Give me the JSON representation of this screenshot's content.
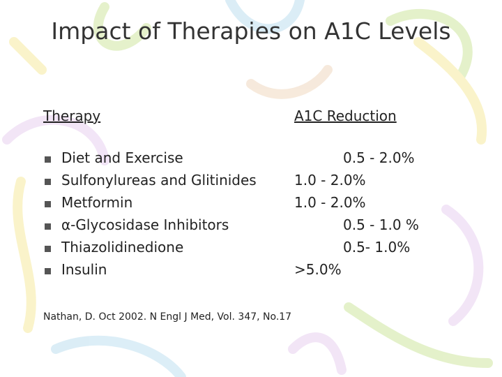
{
  "title": "Impact of Therapies on A1C Levels",
  "table": {
    "headers": [
      "Therapy",
      "A1C Reduction"
    ],
    "rows": [
      [
        "Diet and Exercise",
        "0.5 - 2.0%"
      ],
      [
        "Sulfonylureas and Glitinides",
        "1.0 - 2.0%"
      ],
      [
        "Metformin",
        "1.0 - 2.0%"
      ],
      [
        "α-Glycosidase Inhibitors",
        "0.5 - 1.0 %"
      ],
      [
        "Thiazolidinedione",
        "0.5- 1.0%"
      ],
      [
        "Insulin",
        ">5.0%"
      ]
    ]
  },
  "citation": "Nathan, D.  Oct 2002.  N Engl J Med, Vol. 347,  No.17"
}
